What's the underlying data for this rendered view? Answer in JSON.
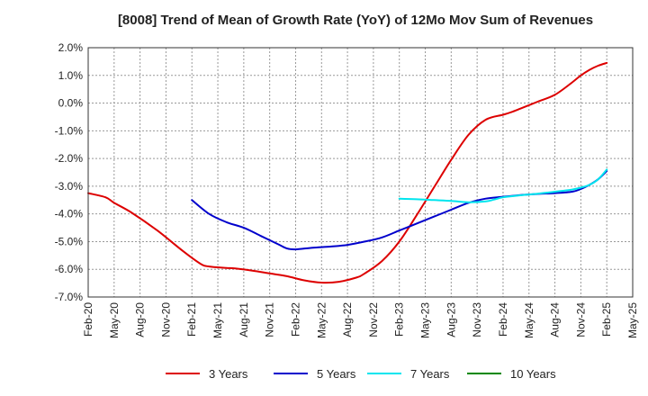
{
  "chart_data": {
    "type": "line",
    "title": "[8008]  Trend of Mean of Growth Rate (YoY) of 12Mo Mov Sum of Revenues",
    "xlabel": "",
    "ylabel": "",
    "ylim": [
      -7.0,
      2.0
    ],
    "y_ticks": [
      2.0,
      1.0,
      0.0,
      -1.0,
      -2.0,
      -3.0,
      -4.0,
      -5.0,
      -6.0,
      -7.0
    ],
    "y_tick_labels": [
      "2.0%",
      "1.0%",
      "0.0%",
      "-1.0%",
      "-2.0%",
      "-3.0%",
      "-4.0%",
      "-5.0%",
      "-6.0%",
      "-7.0%"
    ],
    "x_tick_labels": [
      "Feb-20",
      "May-20",
      "Aug-20",
      "Nov-20",
      "Feb-21",
      "May-21",
      "Aug-21",
      "Nov-21",
      "Feb-22",
      "May-22",
      "Aug-22",
      "Nov-22",
      "Feb-23",
      "May-23",
      "Aug-23",
      "Nov-23",
      "Feb-24",
      "May-24",
      "Aug-24",
      "Nov-24",
      "Feb-25",
      "May-25"
    ],
    "x_range_months": [
      0,
      63
    ],
    "grid": true,
    "legend_position": "bottom",
    "series": [
      {
        "name": "3 Years",
        "color": "#dd0000",
        "x_months": [
          0,
          2,
          3,
          5,
          8,
          11,
          13,
          14,
          16,
          17,
          19,
          21,
          23,
          25,
          27,
          29,
          31,
          32,
          34,
          36,
          38,
          40,
          42,
          44,
          46,
          48,
          49,
          50,
          52,
          54,
          56,
          57,
          58,
          59,
          60
        ],
        "values": [
          -3.25,
          -3.4,
          -3.6,
          -3.95,
          -4.6,
          -5.35,
          -5.8,
          -5.9,
          -5.95,
          -5.97,
          -6.05,
          -6.15,
          -6.25,
          -6.4,
          -6.48,
          -6.45,
          -6.3,
          -6.15,
          -5.7,
          -5.0,
          -4.05,
          -3.05,
          -2.05,
          -1.15,
          -0.6,
          -0.42,
          -0.32,
          -0.2,
          0.05,
          0.3,
          0.75,
          1.0,
          1.2,
          1.35,
          1.45
        ]
      },
      {
        "name": "5 Years",
        "color": "#0000cc",
        "x_months": [
          12,
          14,
          16,
          18,
          20,
          22,
          23,
          24,
          26,
          28,
          30,
          32,
          34,
          36,
          38,
          40,
          42,
          44,
          46,
          48,
          50,
          52,
          54,
          56,
          57,
          58,
          59,
          60
        ],
        "values": [
          -3.5,
          -4.0,
          -4.3,
          -4.5,
          -4.8,
          -5.1,
          -5.25,
          -5.28,
          -5.22,
          -5.18,
          -5.12,
          -5.0,
          -4.85,
          -4.6,
          -4.35,
          -4.1,
          -3.85,
          -3.6,
          -3.45,
          -3.38,
          -3.32,
          -3.28,
          -3.25,
          -3.2,
          -3.1,
          -2.95,
          -2.75,
          -2.45
        ]
      },
      {
        "name": "7 Years",
        "color": "#00e5ee",
        "x_months": [
          36,
          38,
          40,
          42,
          44,
          46,
          47,
          48,
          50,
          52,
          54,
          56,
          57,
          58,
          59,
          60
        ],
        "values": [
          -3.45,
          -3.47,
          -3.5,
          -3.53,
          -3.58,
          -3.55,
          -3.48,
          -3.4,
          -3.33,
          -3.27,
          -3.2,
          -3.12,
          -3.05,
          -2.95,
          -2.75,
          -2.4
        ]
      },
      {
        "name": "10 Years",
        "color": "#008800",
        "x_months": [],
        "values": []
      }
    ]
  }
}
